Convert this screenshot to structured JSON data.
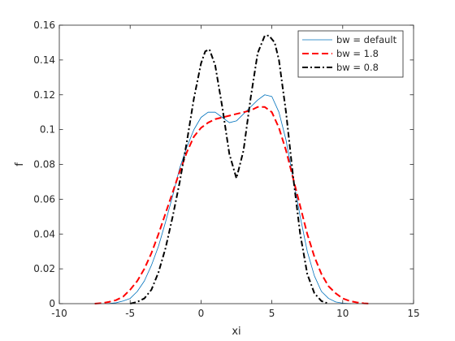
{
  "chart_data": {
    "type": "line",
    "title": "",
    "xlabel": "xi",
    "ylabel": "f",
    "xlim": [
      -10,
      15
    ],
    "ylim": [
      0,
      0.16
    ],
    "xticks": [
      -10,
      -5,
      0,
      5,
      10,
      15
    ],
    "yticks": [
      0,
      0.02,
      0.04,
      0.06,
      0.08,
      0.1,
      0.12,
      0.14,
      0.16
    ],
    "grid": false,
    "legend": "top-right",
    "series": [
      {
        "name": "bw = default",
        "color": "#0072BD",
        "style": "solid",
        "x": [
          -6.6,
          -6,
          -5.5,
          -5,
          -4.5,
          -4,
          -3.5,
          -3,
          -2.5,
          -2,
          -1.5,
          -1,
          -0.5,
          0,
          0.5,
          1,
          1.5,
          2,
          2.5,
          3,
          3.5,
          4,
          4.5,
          5,
          5.5,
          6,
          6.5,
          7,
          7.5,
          8,
          8.5,
          9,
          9.5,
          10,
          10.6
        ],
        "y": [
          0,
          0.0005,
          0.0015,
          0.003,
          0.007,
          0.013,
          0.022,
          0.033,
          0.047,
          0.062,
          0.078,
          0.09,
          0.1,
          0.107,
          0.11,
          0.11,
          0.107,
          0.104,
          0.105,
          0.109,
          0.113,
          0.117,
          0.12,
          0.119,
          0.11,
          0.094,
          0.072,
          0.05,
          0.03,
          0.016,
          0.007,
          0.003,
          0.001,
          0.0003,
          0
        ]
      },
      {
        "name": "bw = 1.8",
        "color": "#FF0000",
        "style": "dashed",
        "x": [
          -7.5,
          -7,
          -6.5,
          -6,
          -5.5,
          -5,
          -4.5,
          -4,
          -3.5,
          -3,
          -2.5,
          -2,
          -1.5,
          -1,
          -0.5,
          0,
          0.5,
          1,
          1.5,
          2,
          2.5,
          3,
          3.5,
          4,
          4.5,
          5,
          5.5,
          6,
          6.5,
          7,
          7.5,
          8,
          8.5,
          9,
          9.5,
          10,
          10.5,
          11,
          11.5,
          12
        ],
        "y": [
          0,
          0.0003,
          0.001,
          0.002,
          0.004,
          0.008,
          0.013,
          0.02,
          0.029,
          0.04,
          0.052,
          0.064,
          0.076,
          0.087,
          0.096,
          0.101,
          0.104,
          0.106,
          0.107,
          0.108,
          0.109,
          0.11,
          0.111,
          0.113,
          0.113,
          0.11,
          0.101,
          0.088,
          0.072,
          0.056,
          0.04,
          0.027,
          0.017,
          0.01,
          0.006,
          0.003,
          0.0015,
          0.0007,
          0.0002,
          0
        ]
      },
      {
        "name": "bw = 0.8",
        "color": "#000000",
        "style": "dashdot",
        "x": [
          -5,
          -4.5,
          -4,
          -3.5,
          -3,
          -2.5,
          -2,
          -1.5,
          -1,
          -0.5,
          0,
          0.3,
          0.6,
          1,
          1.5,
          2,
          2.5,
          3,
          3.5,
          4,
          4.5,
          4.8,
          5.2,
          5.5,
          6,
          6.5,
          7,
          7.5,
          8,
          8.5,
          9
        ],
        "y": [
          0,
          0.001,
          0.003,
          0.008,
          0.018,
          0.032,
          0.05,
          0.07,
          0.093,
          0.118,
          0.138,
          0.145,
          0.146,
          0.137,
          0.113,
          0.086,
          0.072,
          0.088,
          0.118,
          0.144,
          0.154,
          0.154,
          0.15,
          0.14,
          0.11,
          0.073,
          0.04,
          0.017,
          0.006,
          0.0015,
          0
        ]
      }
    ]
  }
}
